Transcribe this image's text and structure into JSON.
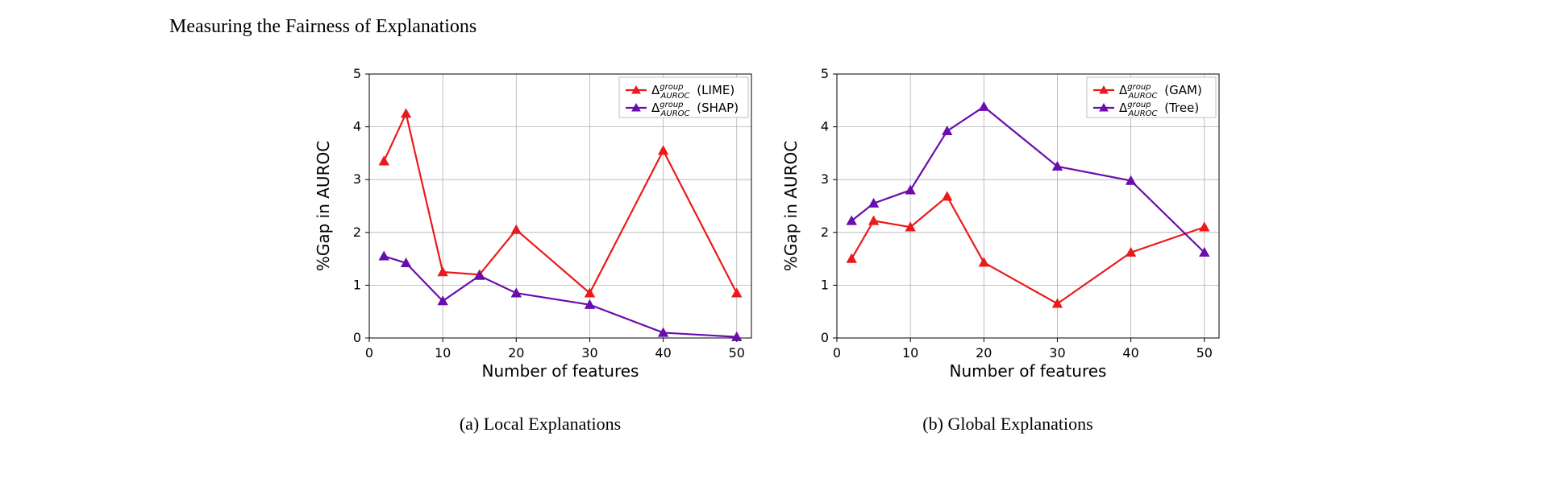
{
  "title": "Measuring the Fairness of Explanations",
  "axes": {
    "xlabel": "Number of features",
    "ylabel": "%Gap in AUROC",
    "xlim": [
      0,
      52
    ],
    "ylim": [
      0,
      5
    ],
    "xticks": [
      0,
      10,
      20,
      30,
      40,
      50
    ],
    "yticks": [
      0,
      1,
      2,
      3,
      4,
      5
    ],
    "xgrid_at": [
      10,
      20,
      30,
      40,
      50
    ],
    "ygrid_at": [
      1,
      2,
      3,
      4,
      5
    ],
    "grid_color": "#b0b0b0",
    "panel_bg": "#ffffff",
    "label_fontsize": 20,
    "tick_fontsize": 16
  },
  "colors": {
    "red": "#eb1a1a",
    "purple": "#6a0dad"
  },
  "marker": {
    "shape": "triangle-up",
    "size": 6
  },
  "line_width": 2.2,
  "legend": {
    "delta_label_html": "Δ<tspan font-style=\"italic\" font-size=\"11\" baseline-shift=\"super\">group</tspan><tspan font-style=\"italic\" font-size=\"11\" baseline-shift=\"sub\" dx=\"-30\">AUROC</tspan>",
    "items_a": [
      "(LIME)",
      "(SHAP)"
    ],
    "items_b": [
      "(GAM)",
      "(Tree)"
    ]
  },
  "panel_a": {
    "caption": "(a) Local Explanations",
    "series_red": {
      "name": "LIME",
      "x": [
        2,
        5,
        10,
        15,
        20,
        30,
        40,
        50
      ],
      "y": [
        3.35,
        4.25,
        1.25,
        1.2,
        2.05,
        0.85,
        3.55,
        0.85
      ]
    },
    "series_purple": {
      "name": "SHAP",
      "x": [
        2,
        5,
        10,
        15,
        20,
        30,
        40,
        50
      ],
      "y": [
        1.55,
        1.42,
        0.7,
        1.18,
        0.85,
        0.63,
        0.1,
        0.02
      ]
    }
  },
  "panel_b": {
    "caption": "(b) Global Explanations",
    "series_red": {
      "name": "GAM",
      "x": [
        2,
        5,
        10,
        15,
        20,
        30,
        40,
        50
      ],
      "y": [
        1.5,
        2.22,
        2.1,
        2.68,
        1.43,
        0.65,
        1.62,
        2.1
      ]
    },
    "series_purple": {
      "name": "Tree",
      "x": [
        2,
        5,
        10,
        15,
        20,
        30,
        40,
        50
      ],
      "y": [
        2.22,
        2.55,
        2.8,
        3.92,
        4.38,
        3.25,
        2.98,
        1.62
      ]
    }
  }
}
